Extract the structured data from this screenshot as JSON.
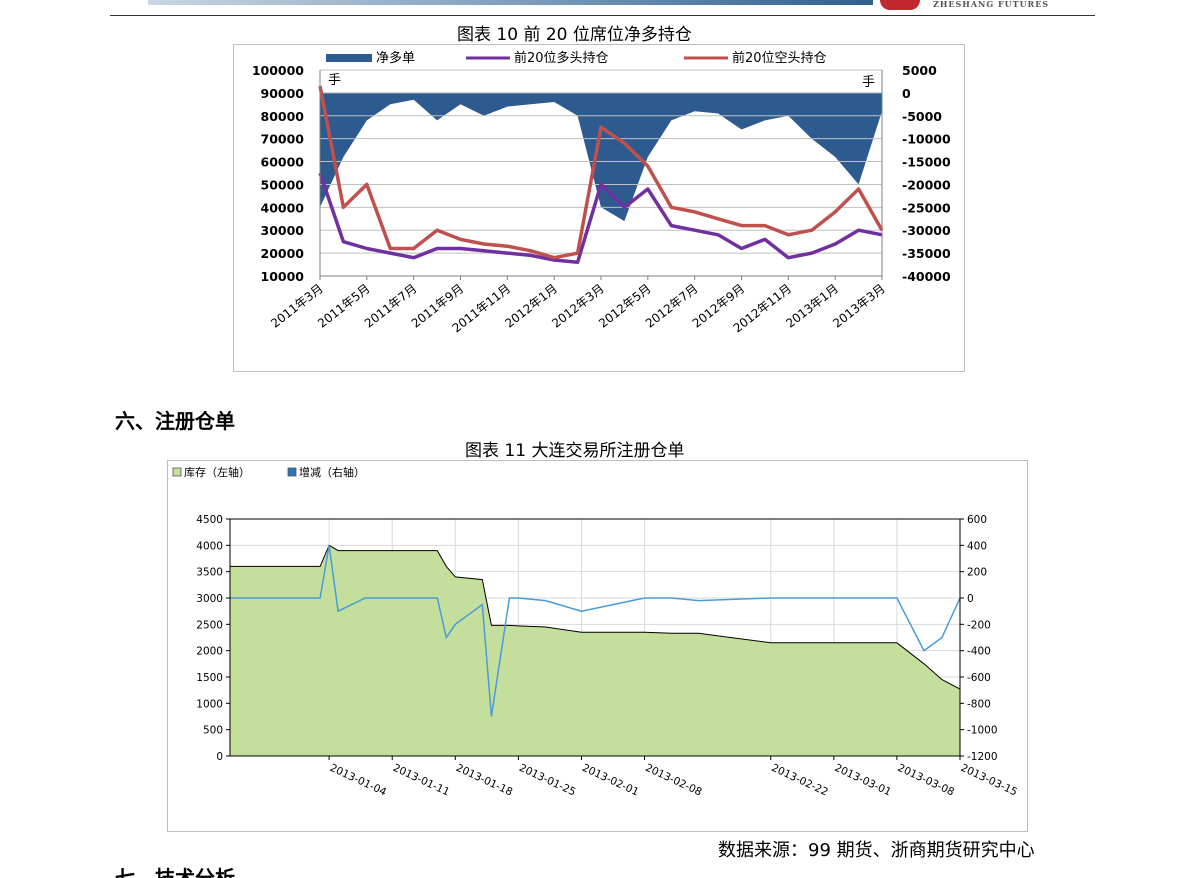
{
  "header": {
    "brand": "ZHESHANG FUTURES",
    "colors": {
      "logo": "#c0282d",
      "banner": "#2f5f8f"
    }
  },
  "figure10": {
    "caption": "图表 10  前 20 位席位净多持仓",
    "legend": [
      "净多单",
      "前20位多头持仓",
      "前20位空头持仓"
    ],
    "left_unit": "手",
    "right_unit": "手",
    "left_ticks": [
      "100000",
      "90000",
      "80000",
      "70000",
      "60000",
      "50000",
      "40000",
      "30000",
      "20000",
      "10000"
    ],
    "right_ticks": [
      "5000",
      "0",
      "-5000",
      "-10000",
      "-15000",
      "-20000",
      "-25000",
      "-30000",
      "-35000",
      "-40000"
    ],
    "x_ticks": [
      "2011年3月",
      "2011年5月",
      "2011年7月",
      "2011年9月",
      "2011年11月",
      "2012年1月",
      "2012年3月",
      "2012年5月",
      "2012年7月",
      "2012年9月",
      "2012年11月",
      "2013年1月",
      "2013年3月"
    ],
    "colors": {
      "net": "#2e5b8f",
      "long": "#7030a0",
      "short": "#c0504d"
    }
  },
  "section6": {
    "title": "六、注册仓单"
  },
  "figure11": {
    "caption": "图表 11  大连交易所注册仓单",
    "legend": [
      "库存（左轴）",
      "增减（右轴）"
    ],
    "colors": {
      "stock": "#c4df9b",
      "change": "#4a9bd6",
      "legend_change": "#2e75b6"
    }
  },
  "source": "数据来源：99 期货、浙商期货研究中心",
  "section7": {
    "title": "七、技术分析"
  },
  "chart_data": [
    {
      "type": "area",
      "title": "前 20 位席位净多持仓",
      "series": [
        {
          "name": "净多单",
          "axis": "right",
          "x": [
            "2011-03",
            "2011-04",
            "2011-05",
            "2011-06",
            "2011-07",
            "2011-08",
            "2011-09",
            "2011-10",
            "2011-11",
            "2011-12",
            "2012-01",
            "2012-02",
            "2012-03",
            "2012-04",
            "2012-05",
            "2012-06",
            "2012-07",
            "2012-08",
            "2012-09",
            "2012-10",
            "2012-11",
            "2012-12",
            "2013-01",
            "2013-02",
            "2013-03"
          ],
          "values": [
            -25000,
            -14000,
            -6000,
            -2500,
            -1500,
            -6000,
            -2500,
            -5000,
            -3000,
            -2500,
            -2000,
            -5000,
            -25000,
            -28000,
            -14000,
            -6000,
            -4000,
            -4500,
            -8000,
            -6000,
            -5000,
            -10000,
            -14000,
            -20000,
            -4000
          ]
        },
        {
          "name": "前20位多头持仓",
          "axis": "left",
          "x": [
            "2011-03",
            "2011-04",
            "2011-05",
            "2011-06",
            "2011-07",
            "2011-08",
            "2011-09",
            "2011-10",
            "2011-11",
            "2011-12",
            "2012-01",
            "2012-02",
            "2012-03",
            "2012-04",
            "2012-05",
            "2012-06",
            "2012-07",
            "2012-08",
            "2012-09",
            "2012-10",
            "2012-11",
            "2012-12",
            "2013-01",
            "2013-02",
            "2013-03"
          ],
          "values": [
            55000,
            25000,
            22000,
            20000,
            18000,
            22000,
            22000,
            21000,
            20000,
            19000,
            17000,
            16000,
            50000,
            40000,
            48000,
            32000,
            30000,
            28000,
            22000,
            26000,
            18000,
            20000,
            24000,
            30000,
            28000
          ]
        },
        {
          "name": "前20位空头持仓",
          "axis": "left",
          "x": [
            "2011-03",
            "2011-04",
            "2011-05",
            "2011-06",
            "2011-07",
            "2011-08",
            "2011-09",
            "2011-10",
            "2011-11",
            "2011-12",
            "2012-01",
            "2012-02",
            "2012-03",
            "2012-04",
            "2012-05",
            "2012-06",
            "2012-07",
            "2012-08",
            "2012-09",
            "2012-10",
            "2012-11",
            "2012-12",
            "2013-01",
            "2013-02",
            "2013-03"
          ],
          "values": [
            93000,
            40000,
            50000,
            22000,
            22000,
            30000,
            26000,
            24000,
            23000,
            21000,
            18000,
            20000,
            75000,
            68000,
            58000,
            40000,
            38000,
            35000,
            32000,
            32000,
            28000,
            30000,
            38000,
            48000,
            30000
          ]
        }
      ],
      "ylim_left": [
        10000,
        100000
      ],
      "ylim_right": [
        -40000,
        5000
      ],
      "grid": true,
      "legend": "top"
    },
    {
      "type": "area",
      "title": "大连交易所注册仓单",
      "x": [
        "2012-12-24",
        "2012-12-27",
        "2013-01-03",
        "2013-01-04",
        "2013-01-05",
        "2013-01-08",
        "2013-01-11",
        "2013-01-14",
        "2013-01-16",
        "2013-01-17",
        "2013-01-18",
        "2013-01-21",
        "2013-01-22",
        "2013-01-24",
        "2013-01-25",
        "2013-01-28",
        "2013-02-01",
        "2013-02-08",
        "2013-02-11",
        "2013-02-14",
        "2013-02-22",
        "2013-03-01",
        "2013-03-08",
        "2013-03-11",
        "2013-03-13",
        "2013-03-15"
      ],
      "series": [
        {
          "name": "库存（左轴）",
          "axis": "left",
          "values": [
            3600,
            3600,
            3600,
            4000,
            3900,
            3900,
            3900,
            3900,
            3900,
            3600,
            3400,
            3350,
            2480,
            2480,
            2470,
            2450,
            2350,
            2350,
            2330,
            2330,
            2150,
            2150,
            2150,
            1750,
            1450,
            1270
          ]
        },
        {
          "name": "增减（右轴）",
          "axis": "right",
          "values": [
            0,
            0,
            0,
            400,
            -100,
            0,
            0,
            0,
            0,
            -300,
            -200,
            -50,
            -900,
            0,
            0,
            -20,
            -100,
            0,
            0,
            -20,
            0,
            0,
            0,
            -400,
            -300,
            0
          ]
        }
      ],
      "x_ticks": [
        "2013-01-04",
        "2013-01-11",
        "2013-01-18",
        "2013-01-25",
        "2013-02-01",
        "2013-02-08",
        "2013-02-22",
        "2013-03-01",
        "2013-03-08",
        "2013-03-15"
      ],
      "left_ticks": [
        "4500",
        "4000",
        "3500",
        "3000",
        "2500",
        "2000",
        "1500",
        "1000",
        "500",
        "0"
      ],
      "right_ticks": [
        "600",
        "400",
        "200",
        "0",
        "-200",
        "-400",
        "-600",
        "-800",
        "-1000",
        "-1200"
      ],
      "ylim_left": [
        0,
        4500
      ],
      "ylim_right": [
        -1200,
        600
      ],
      "grid": true,
      "legend": "top-left"
    }
  ]
}
